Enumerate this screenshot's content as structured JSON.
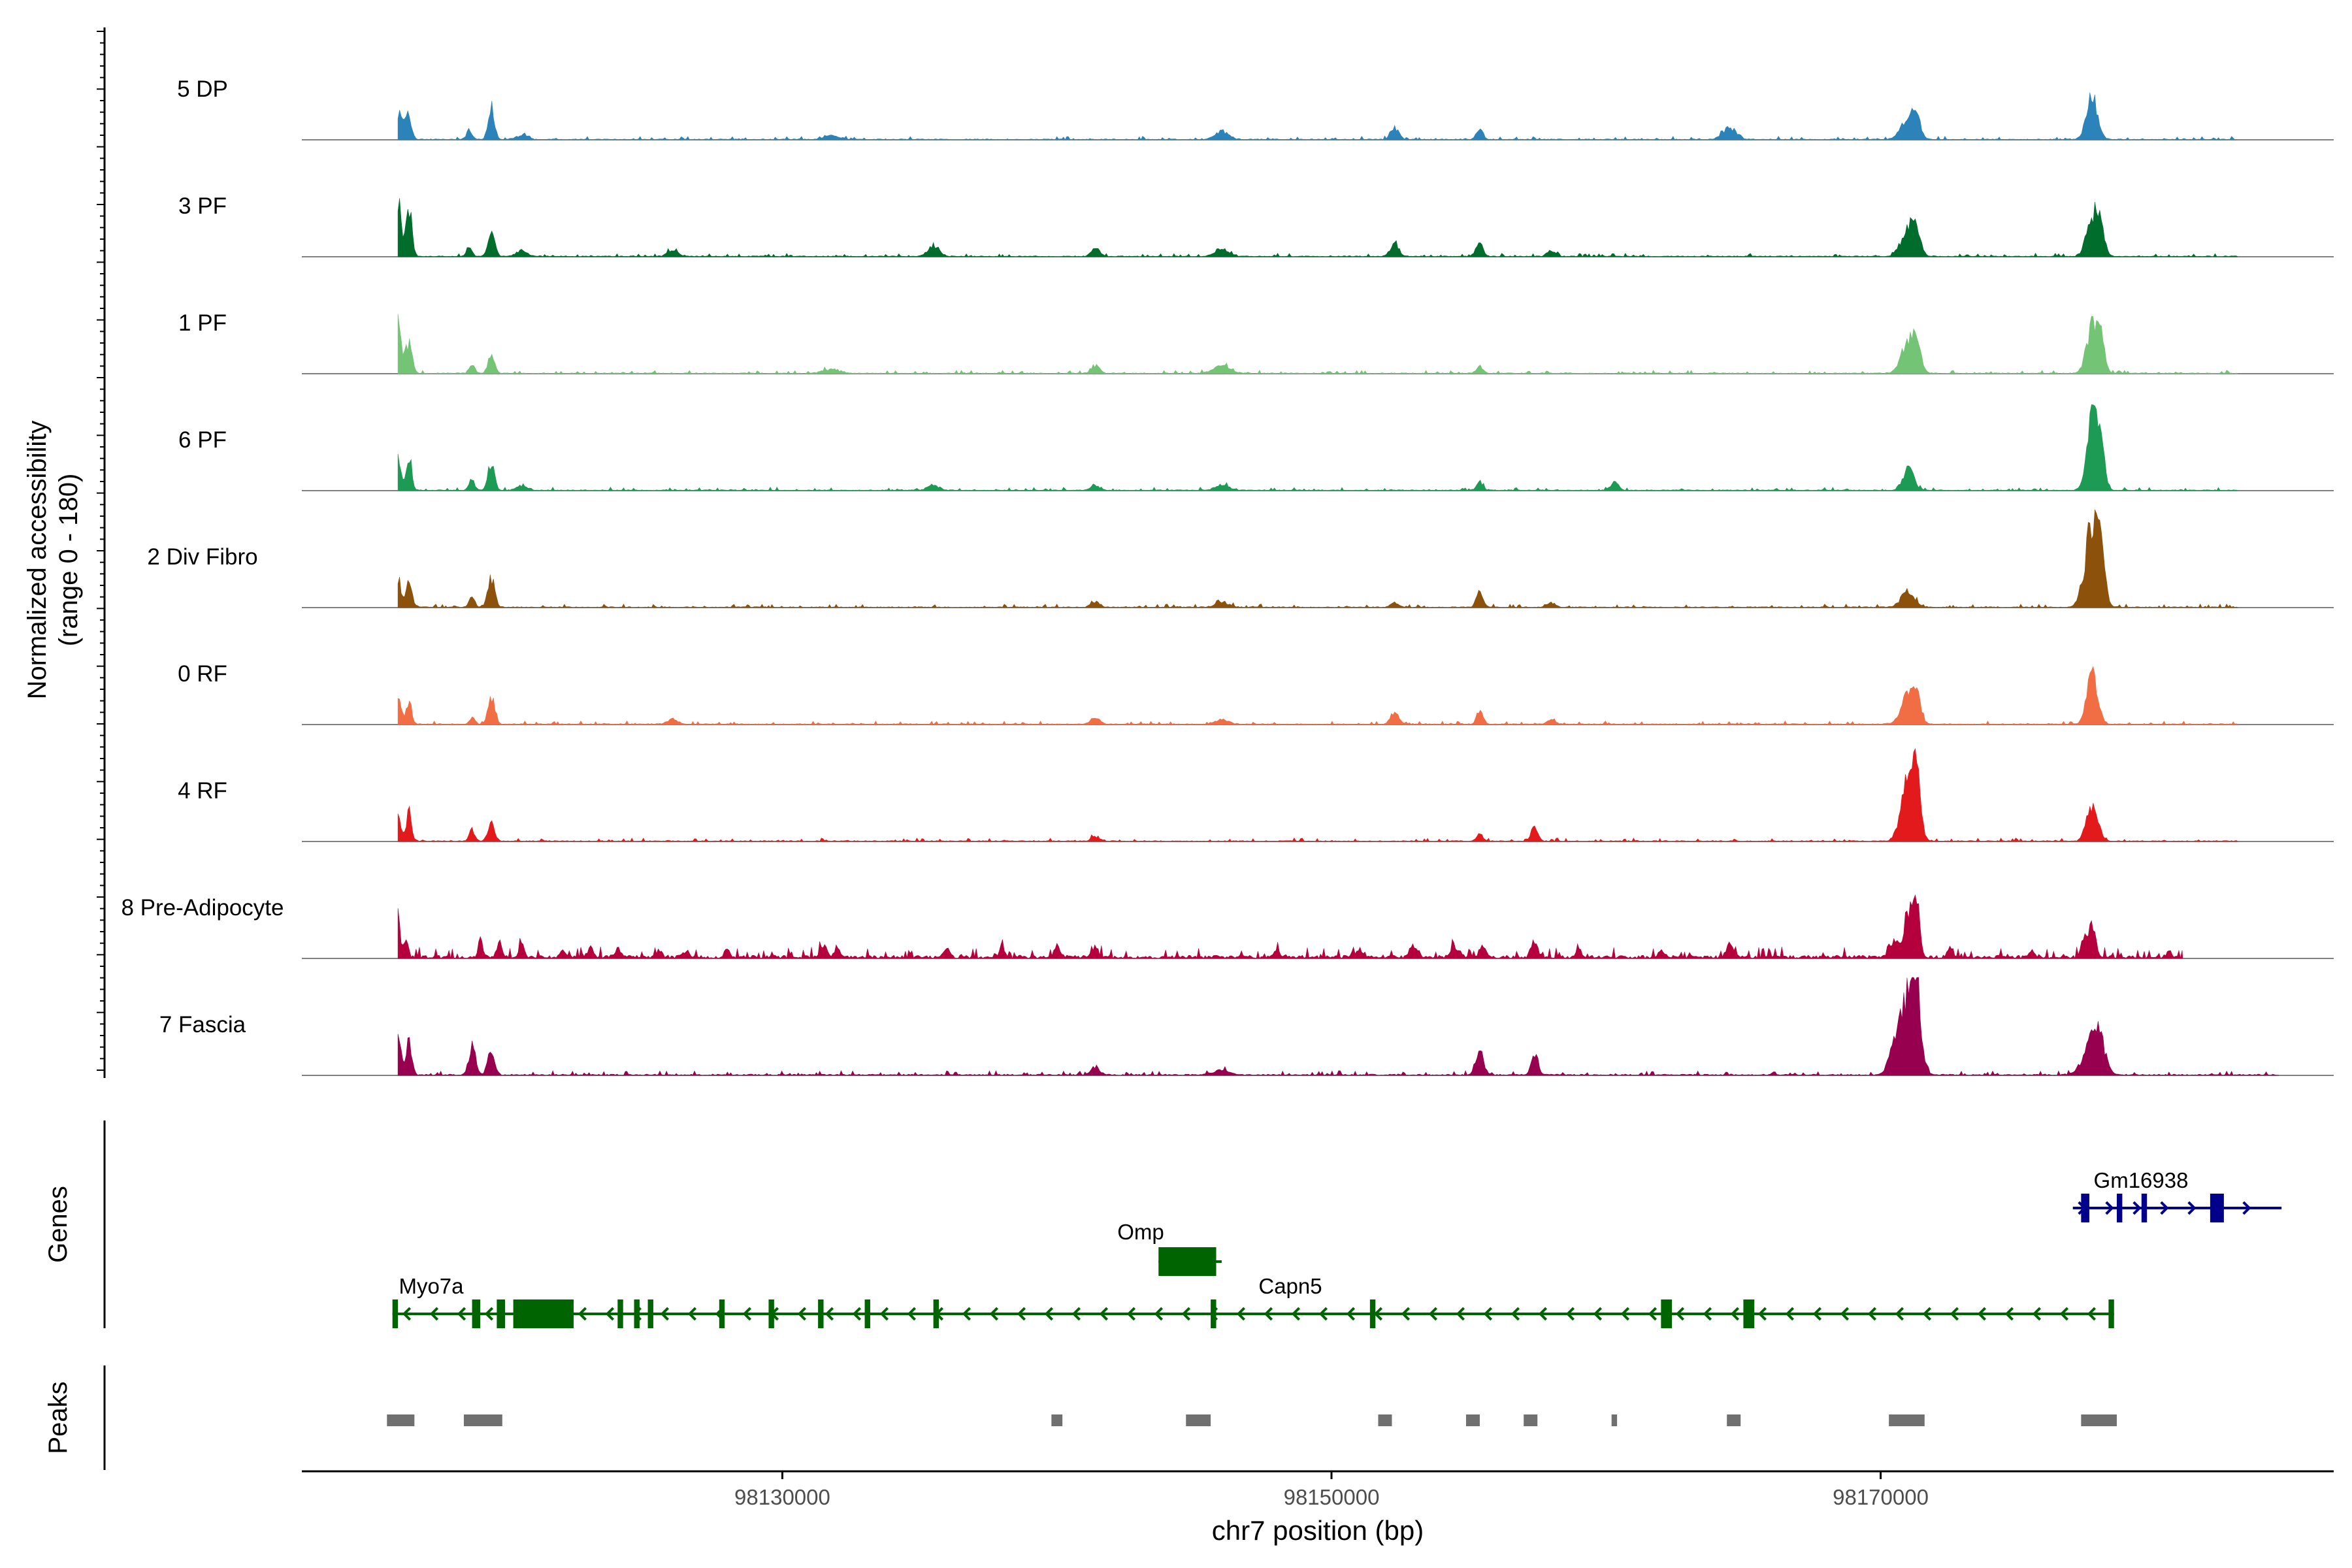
{
  "chart_data": {
    "type": "area",
    "ylabel_line1": "Normalized accessibility",
    "ylabel_line2": "(range 0 - 180)",
    "y_range": [
      0,
      180
    ],
    "xlabel": "chr7 position (bp)",
    "xlim": [
      98112500,
      98186500
    ],
    "x_ticks": [
      98130000,
      98150000,
      98170000
    ],
    "x_tick_labels": [
      "98130000",
      "98150000",
      "98170000"
    ],
    "tracks": [
      {
        "name": "5 DP",
        "color": "#2b83ba",
        "noise": 3,
        "data_span": [
          98116000,
          98183000
        ],
        "peaks": [
          [
            98116100,
            50,
            120
          ],
          [
            98116400,
            45,
            100
          ],
          [
            98118600,
            14,
            100
          ],
          [
            98119400,
            60,
            110
          ],
          [
            98120500,
            8,
            200
          ],
          [
            98131800,
            7,
            300
          ],
          [
            98146000,
            14,
            250
          ],
          [
            98152300,
            22,
            150
          ],
          [
            98155400,
            20,
            120
          ],
          [
            98164500,
            22,
            250
          ],
          [
            98171000,
            40,
            250
          ],
          [
            98171300,
            30,
            150
          ],
          [
            98177700,
            75,
            200
          ]
        ]
      },
      {
        "name": "3 PF",
        "color": "#006d2c",
        "noise": 3,
        "data_span": [
          98116000,
          98183000
        ],
        "peaks": [
          [
            98116000,
            100,
            120
          ],
          [
            98116400,
            90,
            100
          ],
          [
            98118600,
            18,
            100
          ],
          [
            98119400,
            50,
            120
          ],
          [
            98120500,
            10,
            200
          ],
          [
            98126000,
            10,
            200
          ],
          [
            98135500,
            20,
            200
          ],
          [
            98141400,
            14,
            150
          ],
          [
            98146000,
            14,
            250
          ],
          [
            98152300,
            25,
            150
          ],
          [
            98155400,
            30,
            120
          ],
          [
            98158000,
            10,
            150
          ],
          [
            98171000,
            50,
            250
          ],
          [
            98171300,
            40,
            150
          ],
          [
            98177700,
            70,
            200
          ],
          [
            98178000,
            55,
            150
          ]
        ]
      },
      {
        "name": "1 PF",
        "color": "#74c476",
        "noise": 3,
        "data_span": [
          98116000,
          98183000
        ],
        "peaks": [
          [
            98116000,
            95,
            120
          ],
          [
            98116400,
            55,
            120
          ],
          [
            98118700,
            15,
            100
          ],
          [
            98119400,
            35,
            120
          ],
          [
            98131800,
            8,
            300
          ],
          [
            98141400,
            14,
            150
          ],
          [
            98146000,
            14,
            300
          ],
          [
            98155400,
            14,
            120
          ],
          [
            98171000,
            55,
            250
          ],
          [
            98171300,
            50,
            150
          ],
          [
            98177700,
            80,
            200
          ],
          [
            98178000,
            55,
            150
          ]
        ]
      },
      {
        "name": "6 PF",
        "color": "#1d9b54",
        "noise": 3,
        "data_span": [
          98116000,
          98183000
        ],
        "peaks": [
          [
            98116000,
            60,
            120
          ],
          [
            98116400,
            60,
            100
          ],
          [
            98118700,
            20,
            100
          ],
          [
            98119400,
            50,
            120
          ],
          [
            98120500,
            8,
            200
          ],
          [
            98135500,
            10,
            200
          ],
          [
            98141400,
            10,
            150
          ],
          [
            98146000,
            10,
            250
          ],
          [
            98155400,
            14,
            120
          ],
          [
            98160300,
            14,
            150
          ],
          [
            98171000,
            38,
            200
          ],
          [
            98177700,
            120,
            200
          ],
          [
            98178000,
            90,
            150
          ]
        ]
      },
      {
        "name": "2 Div Fibro",
        "color": "#8c510a",
        "noise": 3,
        "data_span": [
          98116000,
          98183000
        ],
        "peaks": [
          [
            98116000,
            50,
            120
          ],
          [
            98116400,
            50,
            100
          ],
          [
            98118700,
            18,
            100
          ],
          [
            98119400,
            55,
            120
          ],
          [
            98141400,
            10,
            150
          ],
          [
            98146000,
            10,
            250
          ],
          [
            98152300,
            8,
            150
          ],
          [
            98155400,
            30,
            120
          ],
          [
            98158000,
            8,
            150
          ],
          [
            98171000,
            28,
            250
          ],
          [
            98177700,
            150,
            250
          ],
          [
            98178000,
            80,
            150
          ]
        ]
      },
      {
        "name": "0 RF",
        "color": "#f16d44",
        "noise": 3,
        "data_span": [
          98116000,
          98183000
        ],
        "peaks": [
          [
            98116000,
            45,
            120
          ],
          [
            98116400,
            40,
            100
          ],
          [
            98118700,
            12,
            100
          ],
          [
            98119400,
            50,
            120
          ],
          [
            98126000,
            8,
            200
          ],
          [
            98141400,
            14,
            150
          ],
          [
            98146000,
            8,
            250
          ],
          [
            98152300,
            22,
            150
          ],
          [
            98155400,
            25,
            120
          ],
          [
            98158000,
            8,
            150
          ],
          [
            98171000,
            50,
            250
          ],
          [
            98171300,
            45,
            150
          ],
          [
            98177700,
            85,
            200
          ]
        ]
      },
      {
        "name": "4 RF",
        "color": "#e31a1c",
        "noise": 3,
        "data_span": [
          98116000,
          98183000
        ],
        "peaks": [
          [
            98116000,
            45,
            120
          ],
          [
            98116400,
            50,
            100
          ],
          [
            98118700,
            20,
            100
          ],
          [
            98119400,
            35,
            120
          ],
          [
            98141400,
            8,
            150
          ],
          [
            98155400,
            14,
            120
          ],
          [
            98157400,
            30,
            120
          ],
          [
            98171000,
            110,
            250
          ],
          [
            98171300,
            90,
            150
          ],
          [
            98177700,
            65,
            200
          ]
        ]
      },
      {
        "name": "8 Pre-Adipocyte",
        "color": "#b5003e",
        "noise": 10,
        "data_span": [
          98116000,
          98181000
        ],
        "peaks": [
          [
            98116000,
            80,
            80
          ],
          [
            98116300,
            40,
            80
          ],
          [
            98119000,
            30,
            80
          ],
          [
            98119700,
            25,
            80
          ],
          [
            98120500,
            20,
            100
          ],
          [
            98122000,
            15,
            100
          ],
          [
            98123000,
            18,
            100
          ],
          [
            98124000,
            15,
            100
          ],
          [
            98125500,
            15,
            100
          ],
          [
            98126500,
            12,
            100
          ],
          [
            98128000,
            18,
            80
          ],
          [
            98131500,
            22,
            120
          ],
          [
            98132000,
            18,
            100
          ],
          [
            98136000,
            15,
            100
          ],
          [
            98138000,
            20,
            100
          ],
          [
            98140000,
            22,
            100
          ],
          [
            98141400,
            20,
            100
          ],
          [
            98148000,
            12,
            100
          ],
          [
            98151000,
            15,
            120
          ],
          [
            98153000,
            20,
            150
          ],
          [
            98154500,
            20,
            150
          ],
          [
            98155500,
            18,
            120
          ],
          [
            98157400,
            30,
            120
          ],
          [
            98159000,
            15,
            100
          ],
          [
            98162000,
            12,
            100
          ],
          [
            98164500,
            22,
            120
          ],
          [
            98170500,
            30,
            150
          ],
          [
            98171000,
            80,
            150
          ],
          [
            98171300,
            95,
            120
          ],
          [
            98172500,
            15,
            100
          ],
          [
            98175500,
            12,
            100
          ],
          [
            98177700,
            60,
            120
          ],
          [
            98177400,
            40,
            100
          ],
          [
            98180500,
            10,
            100
          ]
        ]
      },
      {
        "name": "7 Fascia",
        "color": "#96004f",
        "noise": 4,
        "data_span": [
          98116000,
          98184500
        ],
        "peaks": [
          [
            98116000,
            60,
            120
          ],
          [
            98116400,
            60,
            100
          ],
          [
            98118700,
            55,
            120
          ],
          [
            98119400,
            50,
            120
          ],
          [
            98141400,
            14,
            150
          ],
          [
            98146000,
            10,
            250
          ],
          [
            98155400,
            40,
            150
          ],
          [
            98157400,
            40,
            120
          ],
          [
            98170500,
            50,
            200
          ],
          [
            98171000,
            135,
            250
          ],
          [
            98171300,
            120,
            180
          ],
          [
            98177700,
            60,
            300
          ],
          [
            98178000,
            40,
            200
          ]
        ]
      }
    ],
    "genes_label": "Genes",
    "genes": [
      {
        "name": "Myo7a",
        "color": "#006400",
        "strand": "-",
        "start": 98115800,
        "end": 98120200,
        "exons": [
          [
            98115800,
            98116000
          ],
          [
            98118700,
            98119000
          ],
          [
            98119600,
            98119900
          ]
        ]
      },
      {
        "name": "Capn5",
        "color": "#006400",
        "strand": "-",
        "start": 98120200,
        "end": 98178500,
        "exons": [
          [
            98120200,
            98122400
          ],
          [
            98124000,
            98124200
          ],
          [
            98124600,
            98124800
          ],
          [
            98125100,
            98125300
          ],
          [
            98127700,
            98127900
          ],
          [
            98129500,
            98129700
          ],
          [
            98131300,
            98131500
          ],
          [
            98133000,
            98133200
          ],
          [
            98135500,
            98135700
          ],
          [
            98145600,
            98145800
          ],
          [
            98151400,
            98151600
          ],
          [
            98162000,
            98162400
          ],
          [
            98165000,
            98165400
          ],
          [
            98178300,
            98178500
          ]
        ]
      },
      {
        "name": "Omp",
        "color": "#006400",
        "strand": "-",
        "start": 98143700,
        "end": 98146000,
        "exons": [
          [
            98143700,
            98145800
          ]
        ]
      },
      {
        "name": "Gm16938",
        "color": "#00008b",
        "strand": "+",
        "start": 98177000,
        "end": 98184600,
        "exons": [
          [
            98177300,
            98177600
          ],
          [
            98178600,
            98178800
          ],
          [
            98179500,
            98179700
          ],
          [
            98182000,
            98182500
          ]
        ]
      }
    ],
    "peaks_label": "Peaks",
    "peaks_track_color": "#707070",
    "peak_regions": [
      [
        98115600,
        98116600
      ],
      [
        98118400,
        98119800
      ],
      [
        98139800,
        98140200
      ],
      [
        98144700,
        98145600
      ],
      [
        98151700,
        98152200
      ],
      [
        98154900,
        98155400
      ],
      [
        98157000,
        98157500
      ],
      [
        98160200,
        98160400
      ],
      [
        98164400,
        98164900
      ],
      [
        98170300,
        98171600
      ],
      [
        98177300,
        98178600
      ]
    ]
  }
}
